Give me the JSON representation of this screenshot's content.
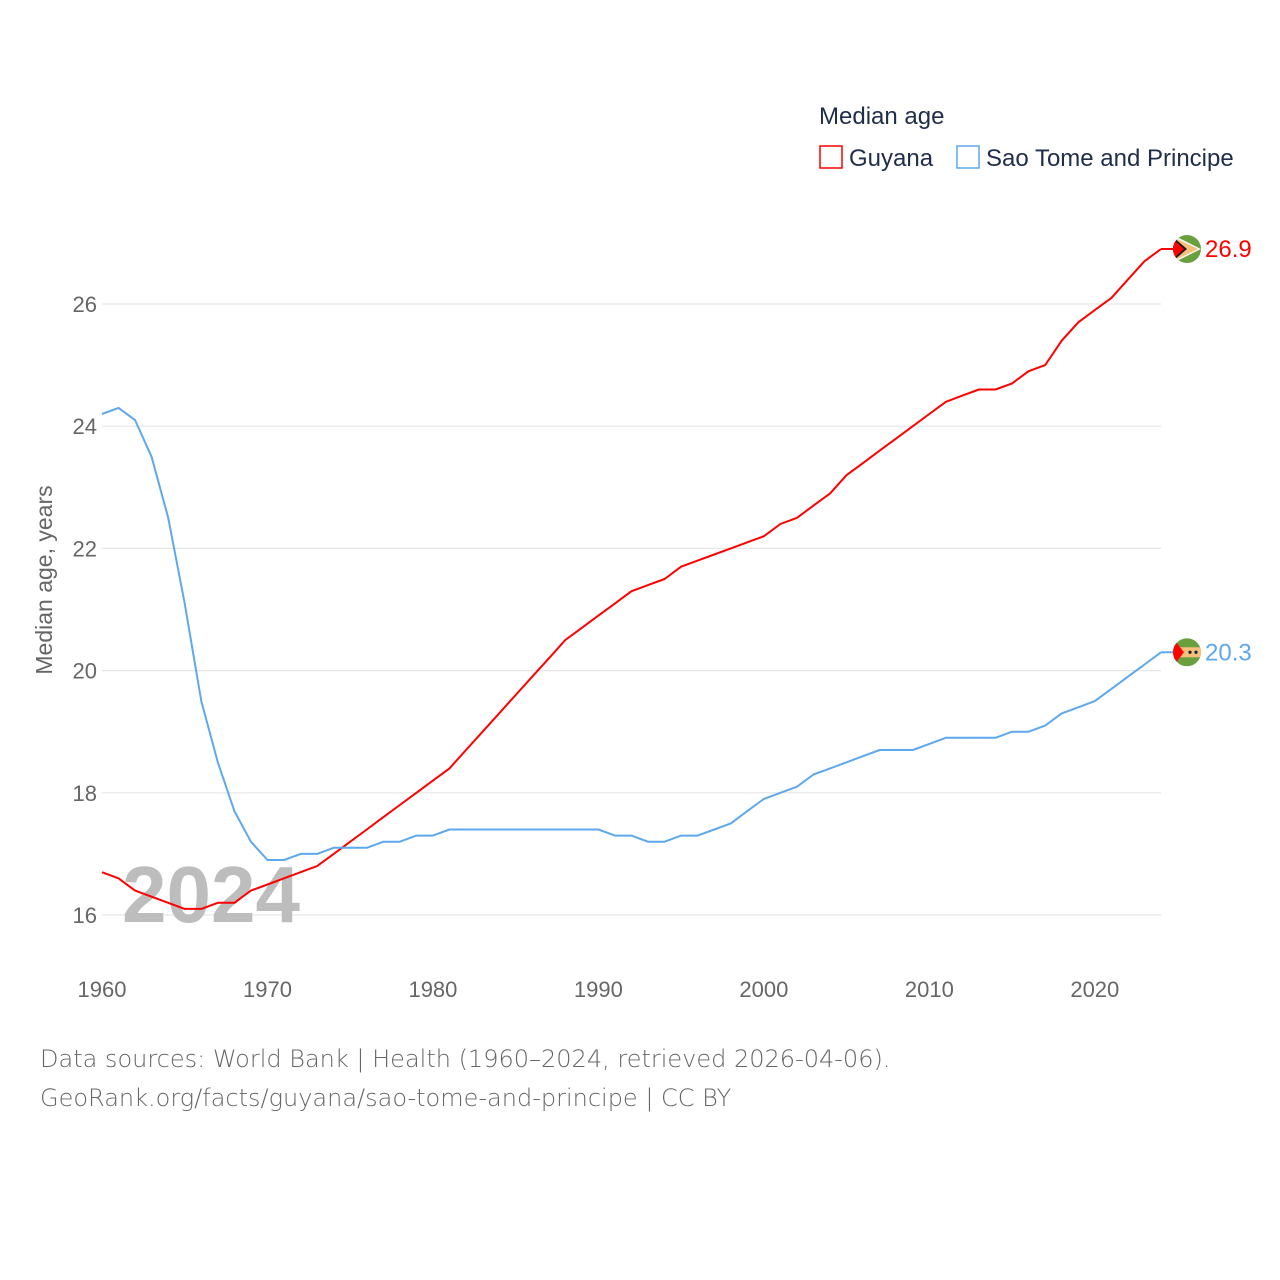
{
  "chart_data": {
    "type": "line",
    "title": "",
    "legend_title": "Median age",
    "legend_position": "top-right",
    "xlabel": "",
    "ylabel": "Median age, years",
    "ylim": [
      16,
      26
    ],
    "xlim": [
      1960,
      2024
    ],
    "yticks": [
      "16",
      "18",
      "20",
      "22",
      "24",
      "26"
    ],
    "xticks": [
      "1960",
      "1970",
      "1980",
      "1990",
      "2000",
      "2010",
      "2020"
    ],
    "grid": true,
    "year_watermark": "2024",
    "x": [
      1960,
      1961,
      1962,
      1963,
      1964,
      1965,
      1966,
      1967,
      1968,
      1969,
      1970,
      1971,
      1972,
      1973,
      1974,
      1975,
      1976,
      1977,
      1978,
      1979,
      1980,
      1981,
      1982,
      1983,
      1984,
      1985,
      1986,
      1987,
      1988,
      1989,
      1990,
      1991,
      1992,
      1993,
      1994,
      1995,
      1996,
      1997,
      1998,
      1999,
      2000,
      2001,
      2002,
      2003,
      2004,
      2005,
      2006,
      2007,
      2008,
      2009,
      2010,
      2011,
      2012,
      2013,
      2014,
      2015,
      2016,
      2017,
      2018,
      2019,
      2020,
      2021,
      2022,
      2023,
      2024
    ],
    "series": [
      {
        "name": "Guyana",
        "color": "#ff0000",
        "end_label": "26.9",
        "values": [
          16.7,
          16.6,
          16.4,
          16.3,
          16.2,
          16.1,
          16.1,
          16.2,
          16.2,
          16.4,
          16.5,
          16.6,
          16.7,
          16.8,
          17.0,
          17.2,
          17.4,
          17.6,
          17.8,
          18.0,
          18.2,
          18.4,
          18.7,
          19.0,
          19.3,
          19.6,
          19.9,
          20.2,
          20.5,
          20.7,
          20.9,
          21.1,
          21.3,
          21.4,
          21.5,
          21.7,
          21.8,
          21.9,
          22.0,
          22.1,
          22.2,
          22.4,
          22.5,
          22.7,
          22.9,
          23.2,
          23.4,
          23.6,
          23.8,
          24.0,
          24.2,
          24.4,
          24.5,
          24.6,
          24.6,
          24.7,
          24.9,
          25.0,
          25.4,
          25.7,
          25.9,
          26.1,
          26.4,
          26.7,
          26.9
        ]
      },
      {
        "name": "Sao Tome and Principe",
        "color": "#5ea8ee",
        "end_label": "20.3",
        "values": [
          24.2,
          24.3,
          24.1,
          23.5,
          22.5,
          21.1,
          19.5,
          18.5,
          17.7,
          17.2,
          16.9,
          16.9,
          17.0,
          17.0,
          17.1,
          17.1,
          17.1,
          17.2,
          17.2,
          17.3,
          17.3,
          17.4,
          17.4,
          17.4,
          17.4,
          17.4,
          17.4,
          17.4,
          17.4,
          17.4,
          17.4,
          17.3,
          17.3,
          17.2,
          17.2,
          17.3,
          17.3,
          17.4,
          17.5,
          17.7,
          17.9,
          18.0,
          18.1,
          18.3,
          18.4,
          18.5,
          18.6,
          18.7,
          18.7,
          18.7,
          18.8,
          18.9,
          18.9,
          18.9,
          18.9,
          19.0,
          19.0,
          19.1,
          19.3,
          19.4,
          19.5,
          19.7,
          19.9,
          20.1,
          20.3
        ]
      }
    ]
  },
  "footer": {
    "line1": "Data sources: World Bank | Health (1960–2024, retrieved 2026-04-06).",
    "line2": "GeoRank.org/facts/guyana/sao-tome-and-principe | CC BY"
  }
}
